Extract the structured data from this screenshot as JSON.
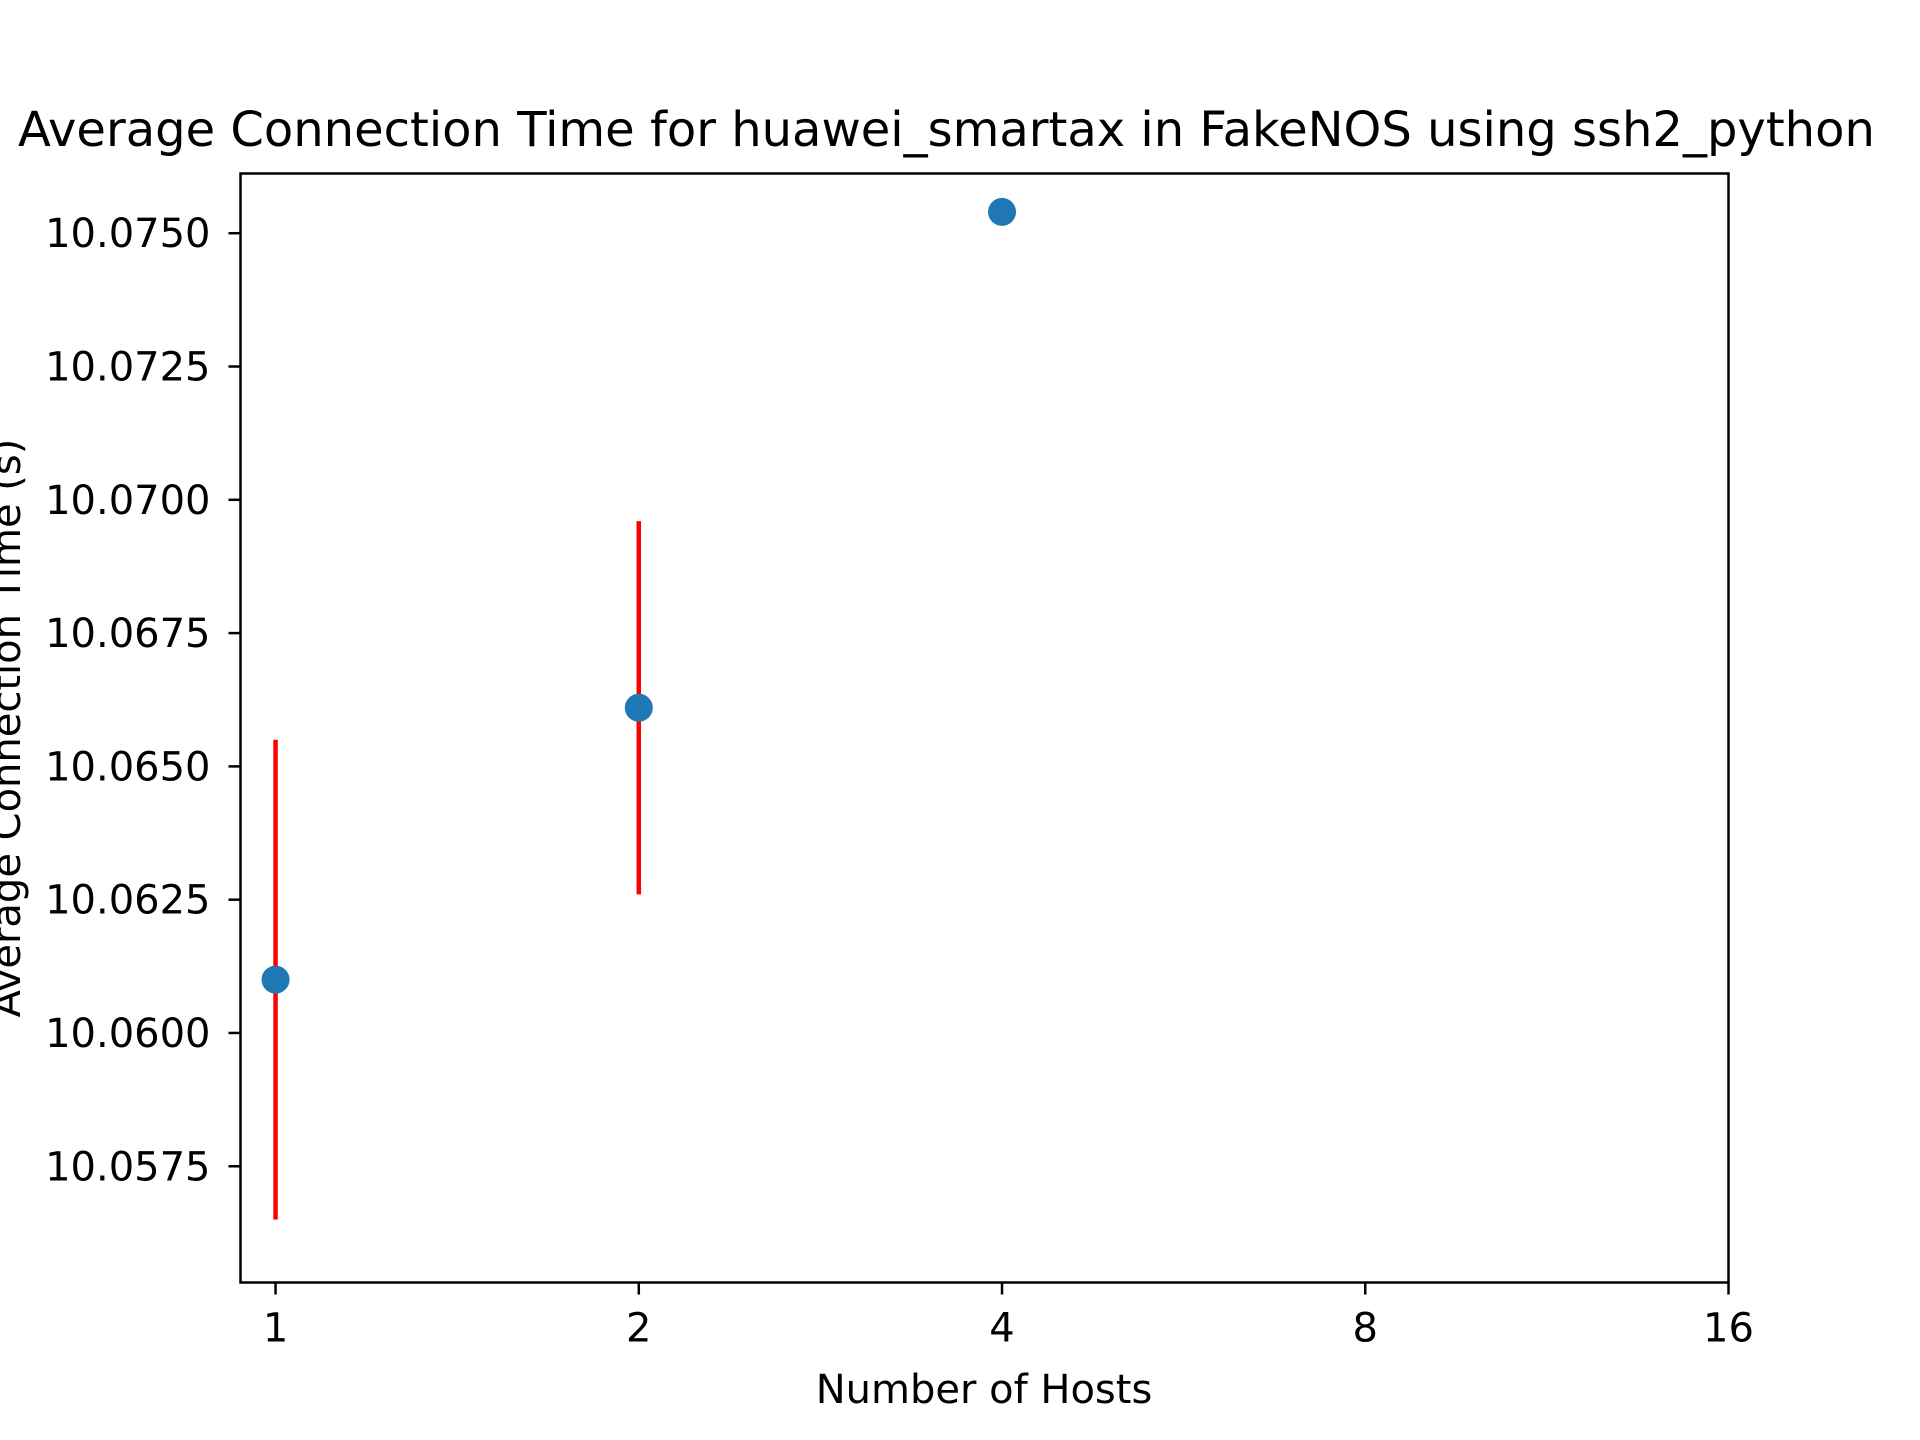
{
  "chart_data": {
    "type": "scatter",
    "title": "Average Connection Time for huawei_smartax in FakeNOS using ssh2_python",
    "xlabel": "Number of Hosts",
    "ylabel": "Average Connection Time (s)",
    "x_scale": "log2",
    "x_ticks": [
      1,
      2,
      4,
      8,
      16
    ],
    "x_tick_labels": [
      "1",
      "2",
      "4",
      "8",
      "16"
    ],
    "xlim": [
      0.9353,
      16
    ],
    "y_ticks": [
      10.0575,
      10.06,
      10.0625,
      10.065,
      10.0675,
      10.07,
      10.0725,
      10.075
    ],
    "y_tick_labels": [
      "10.0575",
      "10.0600",
      "10.0625",
      "10.0650",
      "10.0675",
      "10.0700",
      "10.0725",
      "10.0750"
    ],
    "ylim": [
      10.05532,
      10.07612
    ],
    "grid": false,
    "legend": "none",
    "marker_color": "#1f77b4",
    "errorbar_color": "#ff0000",
    "points": [
      {
        "x": 1,
        "y": 10.061,
        "err_low": 10.0565,
        "err_high": 10.0655
      },
      {
        "x": 2,
        "y": 10.0661,
        "err_low": 10.0626,
        "err_high": 10.0696
      },
      {
        "x": 4,
        "y": 10.0754
      }
    ]
  }
}
